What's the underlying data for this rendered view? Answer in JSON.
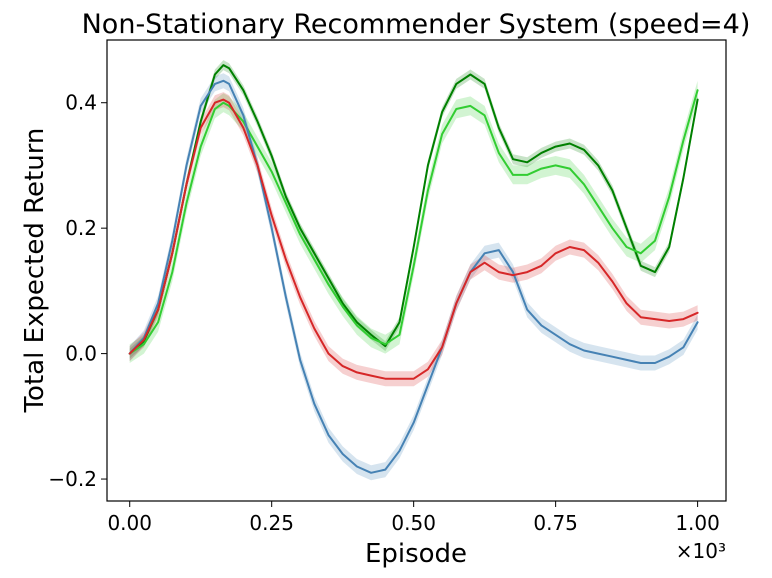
{
  "chart_data": {
    "type": "line",
    "title": "Non-Stationary Recommender System (speed=4)",
    "xlabel": "Episode",
    "ylabel": "Total Expected Return",
    "x_multiplier_label": "×10³",
    "xlim": [
      -0.04,
      1.05
    ],
    "ylim": [
      -0.235,
      0.5
    ],
    "xticks": [
      0.0,
      0.25,
      0.5,
      0.75,
      1.0
    ],
    "xtick_labels": [
      "0.00",
      "0.25",
      "0.50",
      "0.75",
      "1.00"
    ],
    "yticks": [
      -0.2,
      0.0,
      0.2,
      0.4
    ],
    "ytick_labels": [
      "−0.2",
      "0.0",
      "0.2",
      "0.4"
    ],
    "grid": false,
    "legend": "none",
    "x": [
      0.0,
      0.025,
      0.05,
      0.075,
      0.1,
      0.125,
      0.15,
      0.165,
      0.175,
      0.2,
      0.225,
      0.25,
      0.275,
      0.3,
      0.325,
      0.35,
      0.375,
      0.4,
      0.425,
      0.45,
      0.475,
      0.5,
      0.525,
      0.55,
      0.575,
      0.6,
      0.625,
      0.65,
      0.675,
      0.7,
      0.725,
      0.75,
      0.775,
      0.8,
      0.825,
      0.85,
      0.875,
      0.9,
      0.925,
      0.95,
      0.975,
      1.0
    ],
    "series": [
      {
        "color": "#008000",
        "band": 0.008,
        "values": [
          0.0,
          0.02,
          0.07,
          0.16,
          0.27,
          0.37,
          0.445,
          0.46,
          0.455,
          0.42,
          0.37,
          0.315,
          0.25,
          0.2,
          0.16,
          0.12,
          0.08,
          0.05,
          0.03,
          0.012,
          0.05,
          0.17,
          0.3,
          0.385,
          0.43,
          0.445,
          0.43,
          0.36,
          0.31,
          0.305,
          0.32,
          0.33,
          0.335,
          0.325,
          0.3,
          0.26,
          0.2,
          0.14,
          0.13,
          0.17,
          0.28,
          0.405
        ]
      },
      {
        "color": "#32cd32",
        "band": 0.015,
        "values": [
          0.0,
          0.015,
          0.05,
          0.13,
          0.24,
          0.33,
          0.39,
          0.4,
          0.395,
          0.37,
          0.33,
          0.29,
          0.24,
          0.19,
          0.15,
          0.11,
          0.075,
          0.045,
          0.025,
          0.015,
          0.03,
          0.14,
          0.26,
          0.35,
          0.39,
          0.395,
          0.38,
          0.32,
          0.285,
          0.285,
          0.295,
          0.3,
          0.295,
          0.27,
          0.235,
          0.2,
          0.17,
          0.16,
          0.18,
          0.25,
          0.34,
          0.42
        ]
      },
      {
        "color": "#4682b4",
        "band": 0.012,
        "values": [
          0.0,
          0.025,
          0.08,
          0.18,
          0.3,
          0.395,
          0.43,
          0.435,
          0.43,
          0.38,
          0.3,
          0.2,
          0.09,
          -0.01,
          -0.08,
          -0.13,
          -0.16,
          -0.18,
          -0.19,
          -0.185,
          -0.155,
          -0.11,
          -0.05,
          0.01,
          0.08,
          0.13,
          0.16,
          0.165,
          0.13,
          0.07,
          0.045,
          0.03,
          0.015,
          0.005,
          0.0,
          -0.005,
          -0.01,
          -0.015,
          -0.015,
          -0.005,
          0.01,
          0.05
        ]
      },
      {
        "color": "#d62728",
        "band": 0.012,
        "values": [
          0.0,
          0.022,
          0.07,
          0.16,
          0.27,
          0.36,
          0.4,
          0.405,
          0.4,
          0.36,
          0.3,
          0.22,
          0.15,
          0.09,
          0.04,
          0.0,
          -0.02,
          -0.03,
          -0.035,
          -0.04,
          -0.04,
          -0.04,
          -0.025,
          0.01,
          0.08,
          0.13,
          0.145,
          0.13,
          0.125,
          0.13,
          0.14,
          0.16,
          0.17,
          0.165,
          0.145,
          0.115,
          0.08,
          0.058,
          0.055,
          0.052,
          0.055,
          0.065
        ]
      }
    ]
  }
}
